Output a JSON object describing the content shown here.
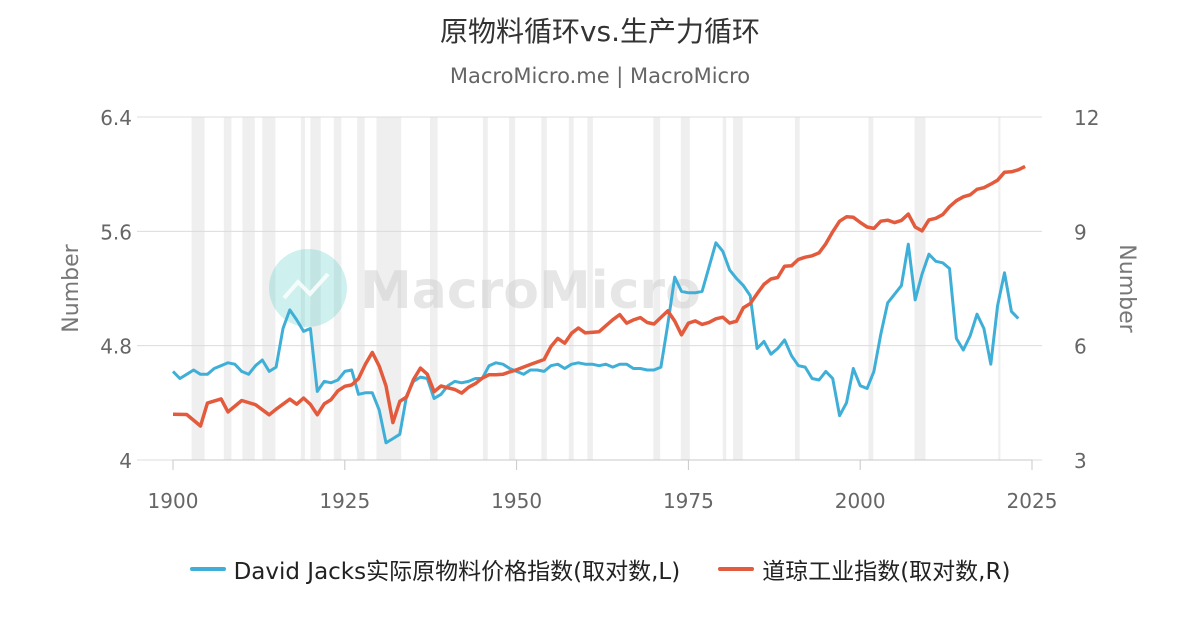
{
  "chart_data": {
    "type": "line",
    "title": "原物料循环vs.生产力循环",
    "subtitle": "MacroMicro.me | MacroMicro",
    "watermark": "MacroMicro",
    "xlim": [
      1900,
      2025
    ],
    "x_ticks": [
      "1900",
      "1925",
      "1950",
      "1975",
      "2000",
      "2025"
    ],
    "left_axis": {
      "label": "Number",
      "ylim": [
        4,
        6.4
      ],
      "ticks": [
        "4",
        "4.8",
        "5.6",
        "6.4"
      ]
    },
    "right_axis": {
      "label": "Number",
      "ylim": [
        3,
        12
      ],
      "ticks": [
        "3",
        "6",
        "9",
        "12"
      ]
    },
    "grid": true,
    "legend_position": "bottom",
    "recession_shading": [
      [
        1902.7,
        1904.6
      ],
      [
        1907.4,
        1908.5
      ],
      [
        1910.1,
        1911.9
      ],
      [
        1913.0,
        1914.9
      ],
      [
        1918.6,
        1919.2
      ],
      [
        1920.0,
        1921.5
      ],
      [
        1923.4,
        1924.5
      ],
      [
        1926.8,
        1927.9
      ],
      [
        1929.6,
        1933.2
      ],
      [
        1937.4,
        1938.5
      ],
      [
        1945.1,
        1945.8
      ],
      [
        1948.9,
        1949.8
      ],
      [
        1953.6,
        1954.4
      ],
      [
        1957.6,
        1958.3
      ],
      [
        1960.3,
        1961.1
      ],
      [
        1969.9,
        1970.9
      ],
      [
        1973.9,
        1975.2
      ],
      [
        1980.0,
        1980.5
      ],
      [
        1981.5,
        1982.9
      ],
      [
        1990.5,
        1991.2
      ],
      [
        2001.2,
        2001.9
      ],
      [
        2007.9,
        2009.5
      ],
      [
        2020.1,
        2020.4
      ]
    ],
    "series": [
      {
        "name": "David Jacks实际原物料价格指数(取对数,L)",
        "axis": "left",
        "color": "#3FAFD8",
        "x": [
          1900,
          1901,
          1902,
          1903,
          1904,
          1905,
          1906,
          1907,
          1908,
          1909,
          1910,
          1911,
          1912,
          1913,
          1914,
          1915,
          1916,
          1917,
          1918,
          1919,
          1920,
          1921,
          1922,
          1923,
          1924,
          1925,
          1926,
          1927,
          1928,
          1929,
          1930,
          1931,
          1932,
          1933,
          1934,
          1935,
          1936,
          1937,
          1938,
          1939,
          1940,
          1941,
          1942,
          1943,
          1944,
          1945,
          1946,
          1947,
          1948,
          1949,
          1950,
          1951,
          1952,
          1953,
          1954,
          1955,
          1956,
          1957,
          1958,
          1959,
          1960,
          1961,
          1962,
          1963,
          1964,
          1965,
          1966,
          1967,
          1968,
          1969,
          1970,
          1971,
          1972,
          1973,
          1974,
          1975,
          1976,
          1977,
          1978,
          1979,
          1980,
          1981,
          1982,
          1983,
          1984,
          1985,
          1986,
          1987,
          1988,
          1989,
          1990,
          1991,
          1992,
          1993,
          1994,
          1995,
          1996,
          1997,
          1998,
          1999,
          2000,
          2001,
          2002,
          2003,
          2004,
          2005,
          2006,
          2007,
          2008,
          2009,
          2010,
          2011,
          2012,
          2013,
          2014,
          2015,
          2016,
          2017,
          2018,
          2019,
          2020,
          2021,
          2022,
          2023,
          2024
        ],
        "y": [
          4.62,
          4.57,
          4.6,
          4.63,
          4.6,
          4.6,
          4.64,
          4.66,
          4.68,
          4.67,
          4.62,
          4.6,
          4.66,
          4.7,
          4.62,
          4.65,
          4.92,
          5.05,
          4.98,
          4.9,
          4.92,
          4.48,
          4.55,
          4.54,
          4.56,
          4.62,
          4.63,
          4.46,
          4.47,
          4.47,
          4.35,
          4.12,
          4.15,
          4.18,
          4.45,
          4.55,
          4.58,
          4.57,
          4.43,
          4.46,
          4.52,
          4.55,
          4.54,
          4.55,
          4.57,
          4.57,
          4.66,
          4.68,
          4.67,
          4.64,
          4.62,
          4.6,
          4.63,
          4.63,
          4.62,
          4.66,
          4.67,
          4.64,
          4.67,
          4.68,
          4.67,
          4.67,
          4.66,
          4.67,
          4.65,
          4.67,
          4.67,
          4.64,
          4.64,
          4.63,
          4.63,
          4.65,
          4.95,
          5.28,
          5.18,
          5.17,
          5.17,
          5.18,
          5.35,
          5.52,
          5.46,
          5.33,
          5.27,
          5.22,
          5.15,
          4.78,
          4.83,
          4.74,
          4.78,
          4.84,
          4.73,
          4.66,
          4.65,
          4.57,
          4.56,
          4.62,
          4.57,
          4.31,
          4.4,
          4.64,
          4.52,
          4.5,
          4.62,
          4.88,
          5.1,
          5.16,
          5.22,
          5.51,
          5.12,
          5.3,
          5.44,
          5.39,
          5.38,
          5.34,
          4.85,
          4.77,
          4.87,
          5.02,
          4.92,
          4.67,
          5.08,
          5.31,
          5.04,
          4.99,
          null
        ]
      },
      {
        "name": "道琼工业指数(取对数,R)",
        "axis": "right",
        "color": "#E35B3C",
        "x": [
          1900,
          1902,
          1904,
          1905,
          1907,
          1908,
          1910,
          1912,
          1914,
          1915,
          1917,
          1918,
          1919,
          1920,
          1921,
          1922,
          1923,
          1924,
          1925,
          1926,
          1927,
          1928,
          1929,
          1930,
          1931,
          1932,
          1933,
          1934,
          1935,
          1936,
          1937,
          1938,
          1939,
          1940,
          1941,
          1942,
          1943,
          1944,
          1945,
          1946,
          1947,
          1948,
          1949,
          1950,
          1952,
          1954,
          1955,
          1956,
          1957,
          1958,
          1959,
          1960,
          1962,
          1964,
          1965,
          1966,
          1967,
          1968,
          1969,
          1970,
          1972,
          1973,
          1974,
          1975,
          1976,
          1977,
          1978,
          1979,
          1980,
          1981,
          1982,
          1983,
          1984,
          1985,
          1986,
          1987,
          1988,
          1989,
          1990,
          1991,
          1992,
          1993,
          1994,
          1995,
          1996,
          1997,
          1998,
          1999,
          2000,
          2001,
          2002,
          2003,
          2004,
          2005,
          2006,
          2007,
          2008,
          2009,
          2010,
          2011,
          2012,
          2013,
          2014,
          2015,
          2016,
          2017,
          2018,
          2019,
          2020,
          2021,
          2022,
          2023,
          2024
        ],
        "y": [
          4.2,
          4.25,
          3.95,
          4.5,
          4.55,
          4.2,
          4.55,
          4.5,
          4.25,
          4.35,
          4.55,
          4.4,
          4.6,
          4.5,
          4.25,
          4.5,
          4.55,
          4.75,
          4.9,
          5.0,
          5.2,
          5.55,
          5.8,
          5.4,
          4.9,
          4.0,
          4.6,
          4.7,
          5.1,
          5.35,
          5.2,
          4.8,
          5.0,
          4.95,
          4.85,
          4.7,
          4.85,
          5.0,
          5.2,
          5.3,
          5.25,
          5.2,
          5.25,
          5.35,
          5.55,
          5.7,
          6.0,
          6.15,
          6.0,
          6.3,
          6.5,
          6.4,
          6.4,
          6.65,
          6.75,
          6.55,
          6.7,
          6.8,
          6.65,
          6.55,
          6.85,
          6.6,
          6.3,
          6.65,
          6.7,
          6.55,
          6.55,
          6.65,
          6.75,
          6.65,
          6.7,
          7.0,
          7.05,
          7.3,
          7.6,
          7.8,
          7.85,
          8.1,
          8.05,
          8.2,
          8.3,
          8.4,
          8.5,
          8.7,
          8.95,
          9.2,
          9.35,
          9.4,
          9.3,
          9.15,
          9.05,
          9.2,
          9.25,
          9.25,
          9.35,
          9.5,
          9.1,
          8.95,
          9.25,
          9.35,
          9.5,
          9.7,
          9.8,
          9.85,
          9.9,
          10.1,
          10.2,
          10.3,
          10.35,
          10.5,
          10.5,
          10.6,
          10.75
        ]
      }
    ]
  }
}
